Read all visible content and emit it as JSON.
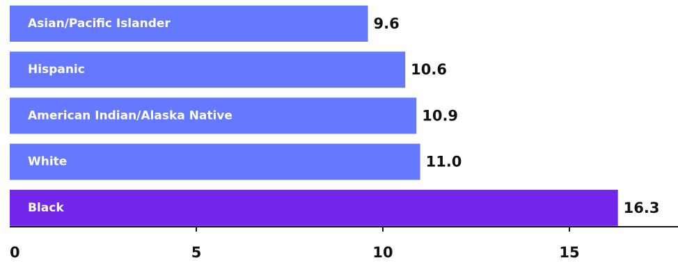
{
  "chart_data": {
    "type": "bar",
    "orientation": "horizontal",
    "title": "",
    "xlabel": "",
    "ylabel": "",
    "categories": [
      "Asian/Pacific Islander",
      "Hispanic",
      "American Indian/Alaska Native",
      "White",
      "Black"
    ],
    "values": [
      9.6,
      10.6,
      10.9,
      11.0,
      16.3
    ],
    "value_labels": [
      "9.6",
      "10.6",
      "10.9",
      "11.0",
      "16.3"
    ],
    "bar_colors": [
      "#6479ff",
      "#6479ff",
      "#6479ff",
      "#6479ff",
      "#7227ea"
    ],
    "xlim": [
      0,
      17.5
    ],
    "xticks": [
      0,
      5,
      10,
      15
    ],
    "xtick_labels": [
      "0",
      "5",
      "10",
      "15"
    ],
    "grid": false,
    "legend": "none"
  }
}
